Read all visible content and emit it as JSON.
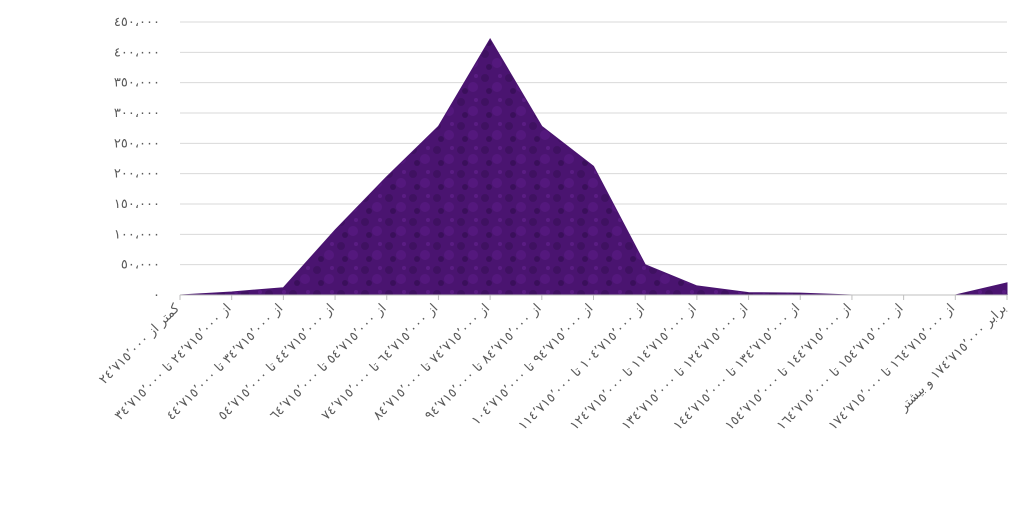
{
  "chart_data": {
    "type": "area",
    "title": "",
    "xlabel": "",
    "ylabel": "",
    "ylim": [
      0,
      450000
    ],
    "yticks": [
      0,
      50000,
      100000,
      150000,
      200000,
      250000,
      300000,
      350000,
      400000,
      450000
    ],
    "ytick_labels": [
      "٠",
      "٥٠،٠٠٠",
      "١٠٠،٠٠٠",
      "١٥٠،٠٠٠",
      "٢٠٠،٠٠٠",
      "٢٥٠،٠٠٠",
      "٣٠٠،٠٠٠",
      "٣٥٠،٠٠٠",
      "٤٠٠،٠٠٠",
      "٤٥٠،٠٠٠"
    ],
    "grid": true,
    "legend": "none",
    "colors": {
      "fill": "#4a1470",
      "grid": "#d9d9d9",
      "text": "#595959"
    },
    "categories": [
      "کمتر از ٢٤٬٧١٥٬٠٠٠",
      "از ٢٤٬٧١٥٬٠٠٠ تا ٣٤٬٧١٥٬٠٠٠",
      "از ٣٤٬٧١٥٬٠٠٠ تا ٤٤٬٧١٥٬٠٠٠",
      "از ٤٤٬٧١٥٬٠٠٠ تا ٥٤٬٧١٥٬٠٠٠",
      "از ٥٤٬٧١٥٬٠٠٠ تا ٦٤٬٧١٥٬٠٠٠",
      "از ٦٤٬٧١٥٬٠٠٠ تا ٧٤٬٧١٥٬٠٠٠",
      "از ٧٤٬٧١٥٬٠٠٠ تا ٨٤٬٧١٥٬٠٠٠",
      "از ٨٤٬٧١٥٬٠٠٠ تا ٩٤٬٧١٥٬٠٠٠",
      "از ٩٤٬٧١٥٬٠٠٠ تا ١٠٤٬٧١٥٬٠٠٠",
      "از ١٠٤٬٧١٥٬٠٠٠ تا ١١٤٬٧١٥٬٠٠٠",
      "از ١١٤٬٧١٥٬٠٠٠ تا ١٢٤٬٧١٥٬٠٠٠",
      "از ١٢٤٬٧١٥٬٠٠٠ تا ١٣٤٬٧١٥٬٠٠٠",
      "از ١٣٤٬٧١٥٬٠٠٠ تا ١٤٤٬٧١٥٬٠٠٠",
      "از ١٤٤٬٧١٥٬٠٠٠ تا ١٥٤٬٧١٥٬٠٠٠",
      "از ١٥٤٬٧١٥٬٠٠٠ تا ١٦٤٬٧١٥٬٠٠٠",
      "از ١٦٤٬٧١٥٬٠٠٠ تا ١٧٤٬٧١٥٬٠٠٠",
      "برابر ١٧٤٬٧١٥٬٠٠٠ و بیشتر"
    ],
    "values": [
      0,
      5000,
      12000,
      107000,
      195000,
      278000,
      422000,
      278000,
      212000,
      50000,
      15000,
      4000,
      3000,
      0,
      0,
      0,
      20000
    ]
  }
}
